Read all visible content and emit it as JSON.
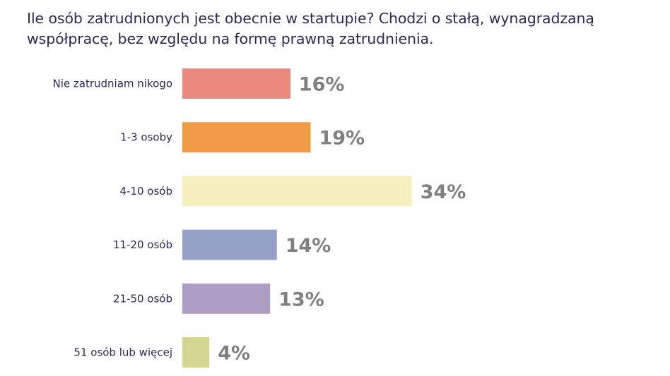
{
  "chart_data": {
    "type": "bar",
    "orientation": "horizontal",
    "title": "Ile osób zatrudnionych jest obecnie w startupie? Chodzi o stałą, wynagradzaną współpracę, bez względu na formę prawną zatrudnienia.",
    "categories": [
      "Nie zatrudniam nikogo",
      "1-3 osoby",
      "4-10 osób",
      "11-20 osób",
      "21-50 osób",
      "51 osób lub więcej"
    ],
    "values": [
      16,
      19,
      34,
      14,
      13,
      4
    ],
    "value_labels": [
      "16%",
      "19%",
      "34%",
      "14%",
      "13%",
      "4%"
    ],
    "unit": "%",
    "colors": [
      "#ea8a7f",
      "#f09a45",
      "#f6f0bf",
      "#95a1c6",
      "#ae9ec6",
      "#d3d690"
    ],
    "legend": "none",
    "grid": false
  }
}
